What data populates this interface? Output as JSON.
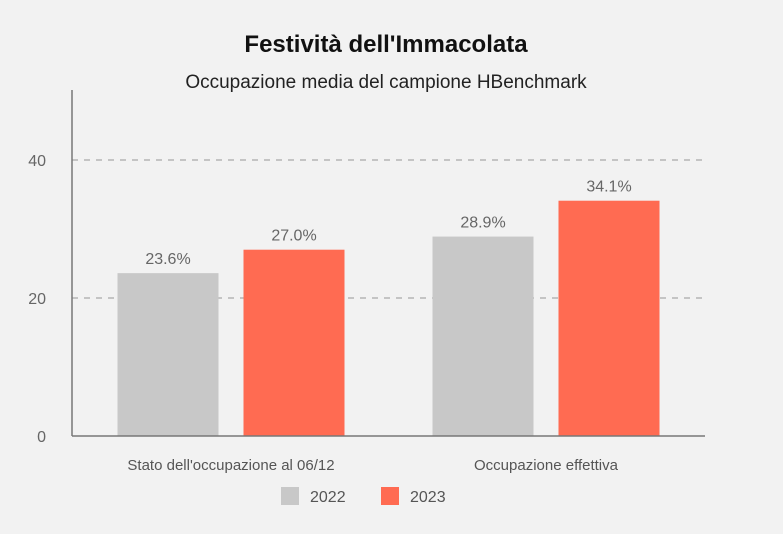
{
  "chart_data": {
    "type": "bar",
    "title": "Festività dell'Immacolata",
    "subtitle": "Occupazione media del campione HBenchmark",
    "categories": [
      "Stato dell'occupazione al 06/12",
      "Occupazione effettiva"
    ],
    "series": [
      {
        "name": "2022",
        "color": "#c8c8c8",
        "values": [
          23.6,
          28.9
        ],
        "labels": [
          "23.6%",
          "28.9%"
        ]
      },
      {
        "name": "2023",
        "color": "#ff6b52",
        "values": [
          27.0,
          34.1
        ],
        "labels": [
          "27.0%",
          "34.1%"
        ]
      }
    ],
    "ylim": [
      0,
      50
    ],
    "yticks": [
      0,
      20,
      40
    ],
    "ytick_labels": [
      "0",
      "20",
      "40"
    ],
    "grid": true,
    "legend_position": "bottom"
  }
}
